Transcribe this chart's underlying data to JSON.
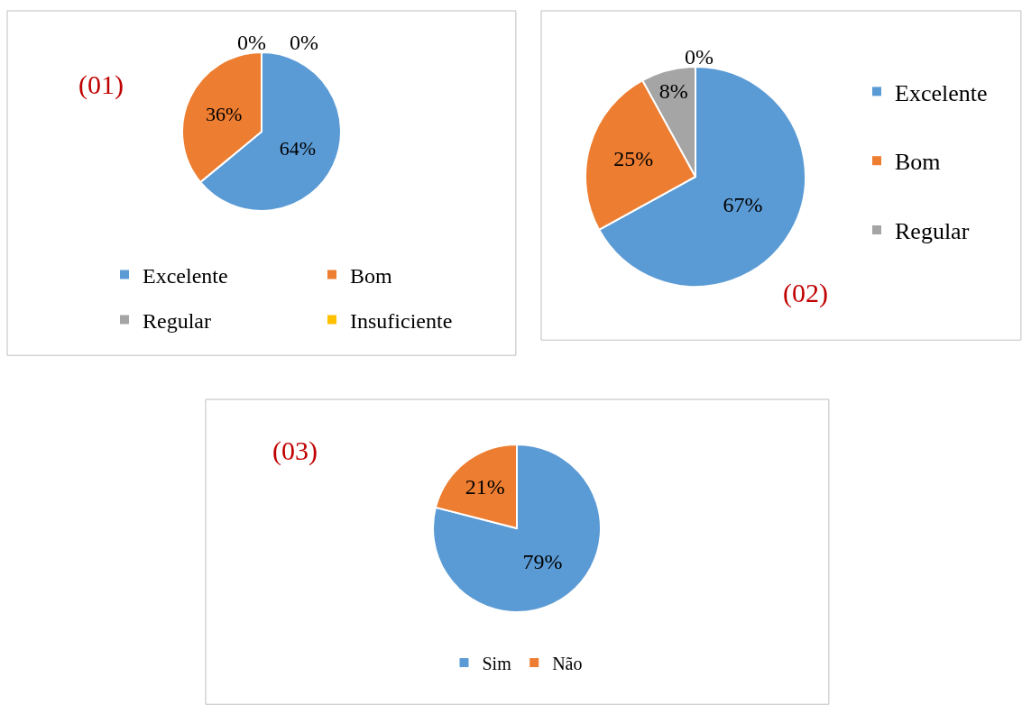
{
  "chart_data": [
    {
      "type": "pie",
      "categories": [
        "Excelente",
        "Bom",
        "Regular",
        "Insuficiente"
      ],
      "values": [
        64,
        36,
        0,
        0
      ],
      "colors": [
        "#5b9bd5",
        "#ed7d31",
        "#a5a5a5",
        "#ffc000"
      ],
      "value_labels": [
        "64%",
        "36%",
        "0%",
        "0%"
      ],
      "legend": "bottom",
      "annotations": [
        "(01)"
      ]
    },
    {
      "type": "pie",
      "categories": [
        "Excelente",
        "Bom",
        "Regular",
        null
      ],
      "values": [
        67,
        25,
        8,
        0
      ],
      "colors": [
        "#5b9bd5",
        "#ed7d31",
        "#a5a5a5",
        "#ffc000"
      ],
      "value_labels": [
        "67%",
        "25%",
        "8%",
        "0%"
      ],
      "legend": "right",
      "annotations": [
        "(02)"
      ]
    },
    {
      "type": "pie",
      "categories": [
        "Sim",
        "Não"
      ],
      "values": [
        79,
        21
      ],
      "colors": [
        "#5b9bd5",
        "#ed7d31"
      ],
      "value_labels": [
        "79%",
        "21%"
      ],
      "legend": "bottom",
      "annotations": [
        "(03)"
      ]
    }
  ]
}
